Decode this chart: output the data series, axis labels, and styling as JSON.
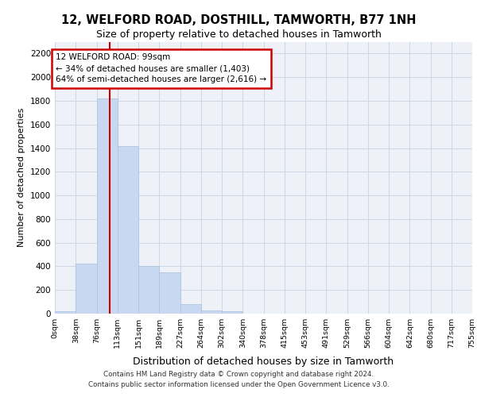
{
  "title_line1": "12, WELFORD ROAD, DOSTHILL, TAMWORTH, B77 1NH",
  "title_line2": "Size of property relative to detached houses in Tamworth",
  "xlabel": "Distribution of detached houses by size in Tamworth",
  "ylabel": "Number of detached properties",
  "bar_color": "#c8d8f0",
  "bar_edgecolor": "#a8c0e0",
  "vline_x": 99,
  "vline_color": "#cc0000",
  "annotation_title": "12 WELFORD ROAD: 99sqm",
  "annotation_line2": "← 34% of detached houses are smaller (1,403)",
  "annotation_line3": "64% of semi-detached houses are larger (2,616) →",
  "annotation_box_color": "#cc0000",
  "footer_line1": "Contains HM Land Registry data © Crown copyright and database right 2024.",
  "footer_line2": "Contains public sector information licensed under the Open Government Licence v3.0.",
  "bin_edges": [
    0,
    38,
    76,
    113,
    151,
    189,
    227,
    264,
    302,
    340,
    378,
    415,
    453,
    491,
    529,
    566,
    604,
    642,
    680,
    717,
    755
  ],
  "bin_labels": [
    "0sqm",
    "38sqm",
    "76sqm",
    "113sqm",
    "151sqm",
    "189sqm",
    "227sqm",
    "264sqm",
    "302sqm",
    "340sqm",
    "378sqm",
    "415sqm",
    "453sqm",
    "491sqm",
    "529sqm",
    "566sqm",
    "604sqm",
    "642sqm",
    "680sqm",
    "717sqm",
    "755sqm"
  ],
  "bar_heights": [
    20,
    420,
    1820,
    1420,
    400,
    350,
    80,
    30,
    20,
    0,
    0,
    0,
    0,
    0,
    0,
    0,
    0,
    0,
    0,
    0
  ],
  "ylim": [
    0,
    2300
  ],
  "yticks": [
    0,
    200,
    400,
    600,
    800,
    1000,
    1200,
    1400,
    1600,
    1800,
    2000,
    2200
  ],
  "grid_color": "#d0d8e8",
  "background_color": "#eef2f8",
  "fig_bg": "#ffffff"
}
